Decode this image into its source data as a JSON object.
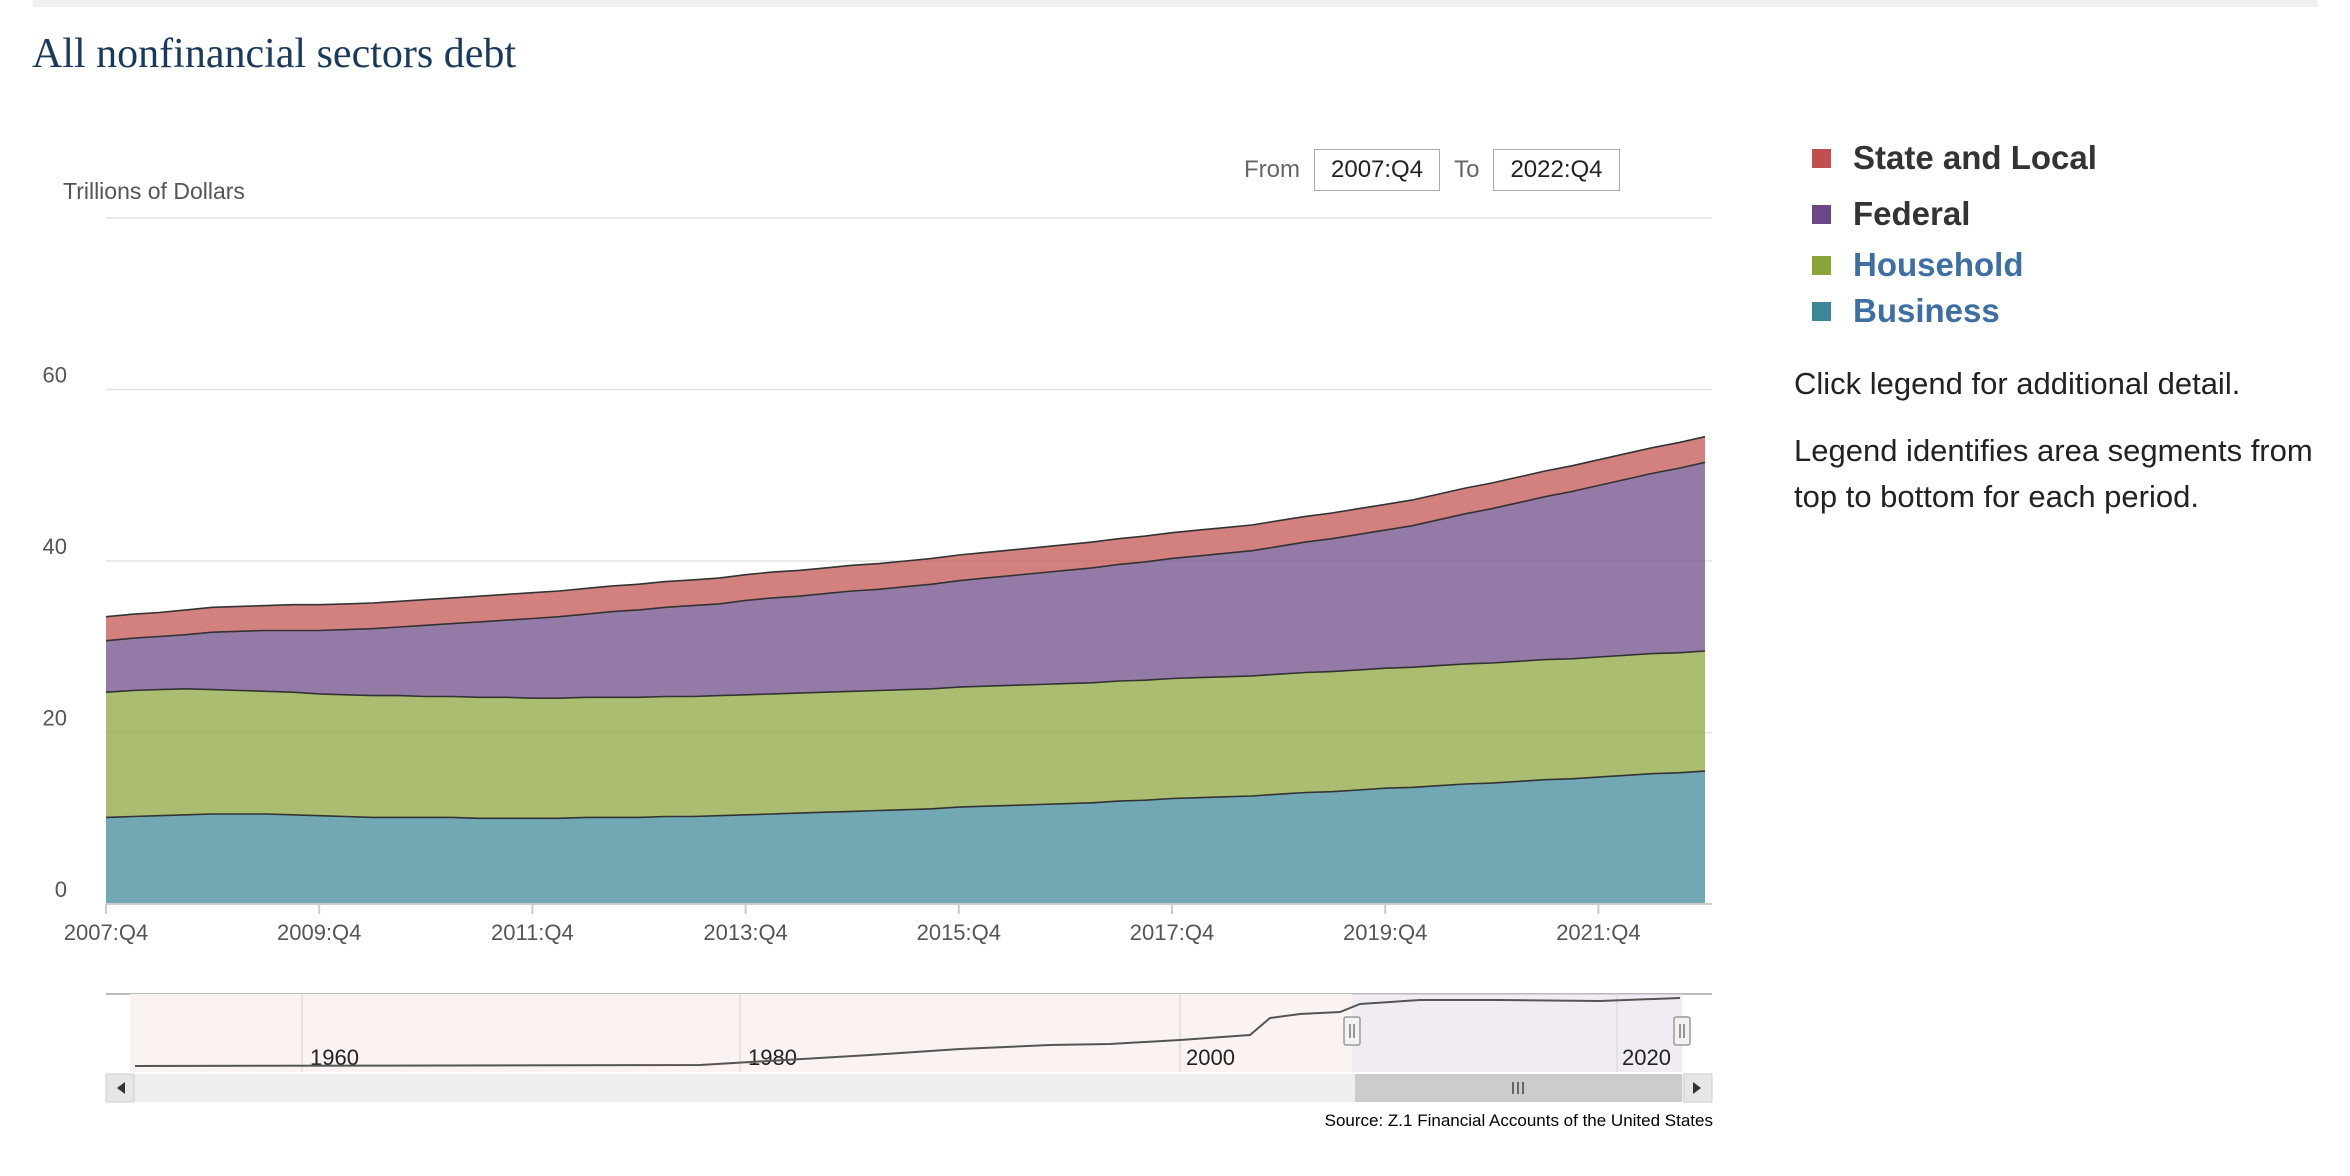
{
  "title": "All nonfinancial sectors debt",
  "range": {
    "from_label": "From",
    "from_value": "2007:Q4",
    "to_label": "To",
    "to_value": "2022:Q4"
  },
  "legend": {
    "items": [
      {
        "label": "State and Local",
        "color": "#c0504d",
        "text_color": "#333333"
      },
      {
        "label": "Federal",
        "color": "#6b4785",
        "text_color": "#333333"
      },
      {
        "label": "Household",
        "color": "#8aa339",
        "text_color": "#3d6fa3"
      },
      {
        "label": "Business",
        "color": "#3c8696",
        "text_color": "#3d6fa3"
      }
    ],
    "note1": "Click legend for additional detail.",
    "note2": "Legend identifies area segments from top to bottom for each period."
  },
  "source": "Source: Z.1 Financial Accounts of the United States",
  "navigator": {
    "labels": [
      "1960",
      "1980",
      "2000",
      "2020"
    ]
  },
  "chart_data": {
    "type": "area",
    "stacked": true,
    "ylabel": "Trillions of Dollars",
    "ylim": [
      0,
      80
    ],
    "yticks": [
      0,
      20,
      40,
      60
    ],
    "x_ticks": [
      "2007:Q4",
      "2009:Q4",
      "2011:Q4",
      "2013:Q4",
      "2015:Q4",
      "2017:Q4",
      "2019:Q4",
      "2021:Q4"
    ],
    "x": [
      "2007:Q4",
      "2008:Q1",
      "2008:Q2",
      "2008:Q3",
      "2008:Q4",
      "2009:Q1",
      "2009:Q2",
      "2009:Q3",
      "2009:Q4",
      "2010:Q1",
      "2010:Q2",
      "2010:Q3",
      "2010:Q4",
      "2011:Q1",
      "2011:Q2",
      "2011:Q3",
      "2011:Q4",
      "2012:Q1",
      "2012:Q2",
      "2012:Q3",
      "2012:Q4",
      "2013:Q1",
      "2013:Q2",
      "2013:Q3",
      "2013:Q4",
      "2014:Q1",
      "2014:Q2",
      "2014:Q3",
      "2014:Q4",
      "2015:Q1",
      "2015:Q2",
      "2015:Q3",
      "2015:Q4",
      "2016:Q1",
      "2016:Q2",
      "2016:Q3",
      "2016:Q4",
      "2017:Q1",
      "2017:Q2",
      "2017:Q3",
      "2017:Q4",
      "2018:Q1",
      "2018:Q2",
      "2018:Q3",
      "2018:Q4",
      "2019:Q1",
      "2019:Q2",
      "2019:Q3",
      "2019:Q4",
      "2020:Q1",
      "2020:Q2",
      "2020:Q3",
      "2020:Q4",
      "2021:Q1",
      "2021:Q2",
      "2021:Q3",
      "2021:Q4",
      "2022:Q1",
      "2022:Q2",
      "2022:Q3",
      "2022:Q4"
    ],
    "series": [
      {
        "name": "Business",
        "color": "#3c8696",
        "values": [
          10.1,
          10.2,
          10.3,
          10.4,
          10.5,
          10.5,
          10.5,
          10.4,
          10.3,
          10.2,
          10.1,
          10.1,
          10.1,
          10.1,
          10.0,
          10.0,
          10.0,
          10.0,
          10.1,
          10.1,
          10.1,
          10.2,
          10.2,
          10.3,
          10.4,
          10.5,
          10.6,
          10.7,
          10.8,
          10.9,
          11.0,
          11.1,
          11.3,
          11.4,
          11.5,
          11.6,
          11.7,
          11.8,
          12.0,
          12.1,
          12.3,
          12.4,
          12.5,
          12.6,
          12.8,
          13.0,
          13.1,
          13.3,
          13.5,
          13.6,
          13.8,
          14.0,
          14.1,
          14.3,
          14.5,
          14.6,
          14.8,
          15.0,
          15.2,
          15.3,
          15.5
        ]
      },
      {
        "name": "Household",
        "color": "#8aa339",
        "values": [
          14.6,
          14.7,
          14.7,
          14.7,
          14.5,
          14.4,
          14.3,
          14.3,
          14.2,
          14.2,
          14.2,
          14.2,
          14.1,
          14.1,
          14.1,
          14.1,
          14.0,
          14.0,
          14.0,
          14.0,
          14.0,
          14.0,
          14.0,
          14.0,
          14.0,
          14.0,
          14.0,
          14.0,
          14.0,
          14.0,
          14.0,
          14.0,
          14.0,
          14.0,
          14.0,
          14.0,
          14.0,
          14.0,
          14.0,
          14.0,
          14.0,
          14.0,
          14.0,
          14.0,
          14.0,
          14.0,
          14.0,
          14.0,
          14.0,
          14.0,
          14.0,
          14.0,
          14.0,
          14.0,
          14.0,
          14.0,
          14.0,
          14.0,
          14.0,
          14.0,
          14.0
        ]
      },
      {
        "name": "Federal",
        "color": "#6b4785",
        "values": [
          6.0,
          6.1,
          6.2,
          6.3,
          6.7,
          6.9,
          7.1,
          7.2,
          7.4,
          7.6,
          7.8,
          8.0,
          8.3,
          8.5,
          8.8,
          9.0,
          9.3,
          9.5,
          9.7,
          10.0,
          10.2,
          10.4,
          10.6,
          10.7,
          11.0,
          11.2,
          11.3,
          11.5,
          11.7,
          11.8,
          12.0,
          12.2,
          12.4,
          12.6,
          12.8,
          13.0,
          13.2,
          13.4,
          13.6,
          13.8,
          14.0,
          14.2,
          14.4,
          14.6,
          14.9,
          15.2,
          15.5,
          15.8,
          16.1,
          16.5,
          17.0,
          17.5,
          18.0,
          18.5,
          19.0,
          19.5,
          20.0,
          20.5,
          21.0,
          21.5,
          22.0
        ]
      },
      {
        "name": "State and Local",
        "color": "#c0504d",
        "values": [
          2.8,
          2.8,
          2.8,
          2.9,
          2.9,
          2.9,
          2.9,
          3.0,
          3.0,
          3.0,
          3.0,
          3.0,
          3.0,
          3.0,
          3.0,
          3.0,
          3.0,
          3.0,
          3.0,
          3.0,
          3.0,
          3.0,
          3.0,
          3.0,
          3.0,
          3.0,
          3.0,
          3.0,
          3.0,
          3.0,
          3.0,
          3.0,
          3.0,
          3.0,
          3.0,
          3.0,
          3.0,
          3.0,
          3.0,
          3.0,
          3.0,
          3.0,
          3.0,
          3.0,
          3.0,
          3.0,
          3.0,
          3.0,
          3.0,
          3.0,
          3.0,
          3.0,
          3.0,
          3.0,
          3.0,
          3.0,
          3.0,
          3.0,
          3.0,
          3.0,
          3.0
        ]
      }
    ]
  }
}
